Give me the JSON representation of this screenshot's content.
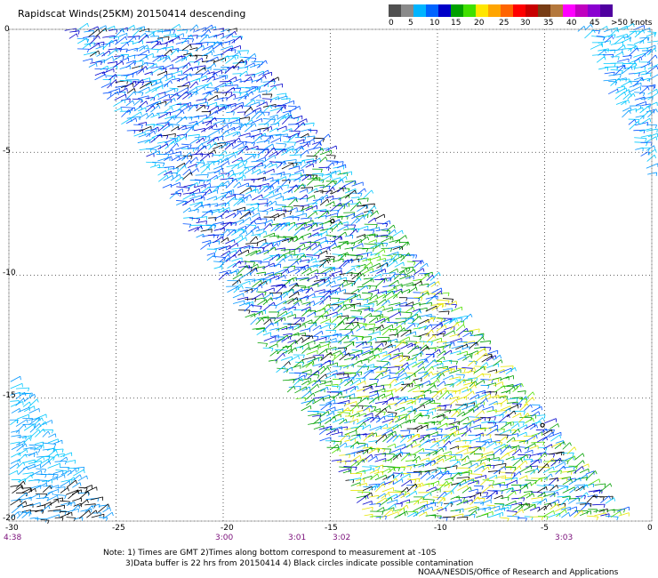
{
  "title": "Rapidscat Winds(25KM) 20150414 descending",
  "colorbar": {
    "segments": [
      {
        "color": "#505050"
      },
      {
        "color": "#8a8a8a"
      },
      {
        "color": "#00b4ff"
      },
      {
        "color": "#0064ff"
      },
      {
        "color": "#0000c8"
      },
      {
        "color": "#00a000"
      },
      {
        "color": "#40e000"
      },
      {
        "color": "#ffe600"
      },
      {
        "color": "#ffa500"
      },
      {
        "color": "#ff6400"
      },
      {
        "color": "#ff0000"
      },
      {
        "color": "#c80000"
      },
      {
        "color": "#783c14"
      },
      {
        "color": "#b4783c"
      },
      {
        "color": "#ff00ff"
      },
      {
        "color": "#c000c0"
      },
      {
        "color": "#8a00d0"
      },
      {
        "color": "#5000a0"
      }
    ],
    "labels": [
      "0",
      "5",
      "10",
      "15",
      "20",
      "25",
      "30",
      "35",
      "40",
      "45",
      ">50 knots"
    ]
  },
  "axes": {
    "y_labels": [
      "0",
      "-5",
      "-10",
      "-15",
      "-20"
    ],
    "x_labels": [
      "-30",
      "-25",
      "-20",
      "-15",
      "-10",
      "-5",
      "0"
    ],
    "x_range": [
      -30,
      0
    ],
    "y_range": [
      -20,
      0
    ]
  },
  "time_labels": [
    "4:38",
    "3:00",
    "3:01",
    "3:02",
    "3:03"
  ],
  "notes": {
    "line1": "Note: 1) Times are GMT 2)Times along bottom correspond to measurement at -10S",
    "line2": "3)Data buffer is 22 hrs from 20150414 4) Black circles indicate possible contamination",
    "credit": "NOAA/NESDIS/Office of Research and Applications"
  },
  "swaths": [
    {
      "name": "main",
      "corners_lonlat": [
        [
          -27.5,
          0
        ],
        [
          -19.8,
          0
        ],
        [
          -1.2,
          -20
        ],
        [
          -13.3,
          -20
        ]
      ]
    },
    {
      "name": "upper-right",
      "corners_lonlat": [
        [
          -3.5,
          0
        ],
        [
          0,
          0
        ],
        [
          0,
          -6.3
        ]
      ]
    },
    {
      "name": "lower-left",
      "corners_lonlat": [
        [
          -30,
          -14
        ],
        [
          -25.3,
          -20
        ],
        [
          -30,
          -20
        ]
      ]
    }
  ],
  "contamination_points_lonlat": [
    [
      -14.9,
      -7.8
    ],
    [
      -5.1,
      -16.1
    ]
  ],
  "speed_colors": [
    "#00c8ff",
    "#0096ff",
    "#0050ff",
    "#0000cc",
    "#00a000",
    "#50e000",
    "#e6e600",
    "#000000"
  ]
}
